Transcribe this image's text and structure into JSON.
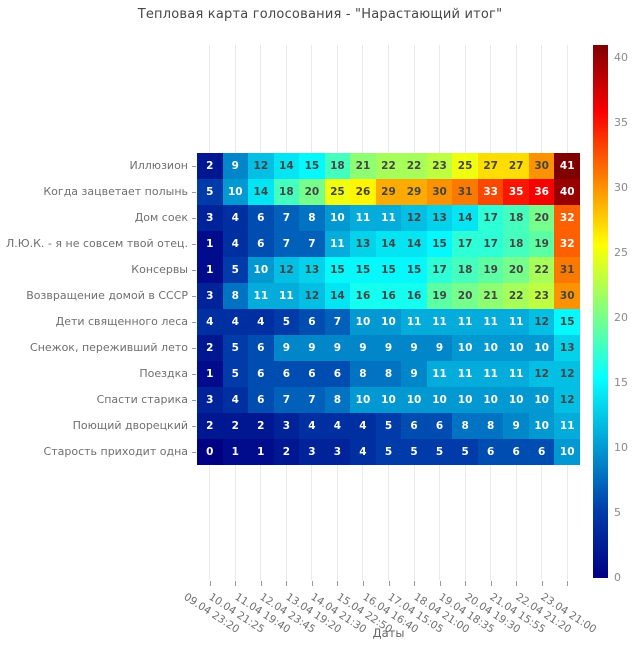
{
  "chart": {
    "title": "Тепловая карта голосования - \"Нарастающий итог\"",
    "xlabel": "Даты"
  },
  "chart_data": {
    "type": "heatmap",
    "title": "Тепловая карта голосования - \"Нарастающий итог\"",
    "xlabel": "Даты",
    "ylabel": "",
    "grid": true,
    "legend_position": "right-colorbar",
    "rows": [
      "Иллюзион",
      "Когда зацветает полынь",
      "Дом соек",
      "Л.Ю.К. - я не совсем твой отец.",
      "Консервы",
      "Возвращение домой в СССР",
      "Дети священного леса",
      "Снежок, переживший лето",
      "Поездка",
      "Спасти старика",
      "Поющий дворецкий",
      "Старость приходит одна"
    ],
    "columns": [
      "09.04 23:20",
      "10.04 21:25",
      "11.04 19:40",
      "12.04 23:45",
      "13.04 19:20",
      "14.04 21:30",
      "15.04 22:50",
      "16.04 16:40",
      "17.04 15:05",
      "18.04 21:00",
      "19.04 18:35",
      "20.04 19:30",
      "21.04 15:55",
      "22.04 21:20",
      "23.04 21:00"
    ],
    "values": [
      [
        2,
        9,
        12,
        14,
        15,
        18,
        21,
        22,
        22,
        23,
        25,
        27,
        27,
        30,
        41
      ],
      [
        5,
        10,
        14,
        18,
        20,
        25,
        26,
        29,
        29,
        30,
        31,
        33,
        35,
        36,
        40
      ],
      [
        3,
        4,
        6,
        7,
        8,
        10,
        11,
        11,
        12,
        13,
        14,
        17,
        18,
        20,
        32
      ],
      [
        1,
        4,
        6,
        7,
        7,
        11,
        13,
        14,
        14,
        15,
        17,
        17,
        18,
        19,
        32
      ],
      [
        1,
        5,
        10,
        12,
        13,
        15,
        15,
        15,
        15,
        17,
        18,
        19,
        20,
        22,
        31
      ],
      [
        3,
        8,
        11,
        11,
        12,
        14,
        16,
        16,
        16,
        19,
        20,
        21,
        22,
        23,
        30
      ],
      [
        4,
        4,
        4,
        5,
        6,
        7,
        10,
        10,
        11,
        11,
        11,
        11,
        11,
        12,
        15
      ],
      [
        2,
        5,
        6,
        9,
        9,
        9,
        9,
        9,
        9,
        9,
        10,
        10,
        10,
        10,
        13
      ],
      [
        1,
        5,
        6,
        6,
        6,
        6,
        8,
        8,
        9,
        11,
        11,
        11,
        11,
        12,
        12
      ],
      [
        3,
        4,
        6,
        7,
        7,
        8,
        10,
        10,
        10,
        10,
        10,
        10,
        10,
        10,
        12
      ],
      [
        2,
        2,
        2,
        3,
        4,
        4,
        4,
        5,
        6,
        6,
        8,
        8,
        9,
        10,
        11
      ],
      [
        0,
        1,
        1,
        2,
        3,
        3,
        4,
        5,
        5,
        5,
        5,
        6,
        6,
        6,
        10
      ]
    ],
    "vmin": 0,
    "vmax": 41,
    "colorscale_name": "jet",
    "colorscale": [
      {
        "stop": 0,
        "color": "#000083"
      },
      {
        "stop": 0.125,
        "color": "#003caa"
      },
      {
        "stop": 0.375,
        "color": "#05ffff"
      },
      {
        "stop": 0.625,
        "color": "#ffff00"
      },
      {
        "stop": 0.875,
        "color": "#fa0000"
      },
      {
        "stop": 1,
        "color": "#800000"
      }
    ],
    "colorbar_ticks": [
      0,
      5,
      10,
      15,
      20,
      25,
      30,
      35,
      40
    ]
  },
  "style": {
    "cell_text_dark": "#454545",
    "cell_text_light": "#ffffff",
    "axis_label_color": "#6f6f6f",
    "title_color": "#474747",
    "gridline_color": "#e9e9e9",
    "tick_color": "#9b9b9b"
  }
}
